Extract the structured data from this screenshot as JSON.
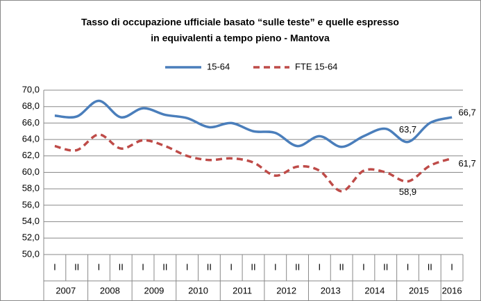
{
  "chart_data": {
    "type": "line",
    "title": [
      "Tasso di occupazione ufficiale basato “sulle teste” e quelle espresso",
      "in equivalenti a tempo pieno - Mantova"
    ],
    "categories": [
      "I",
      "II",
      "I",
      "II",
      "I",
      "II",
      "I",
      "II",
      "I",
      "II",
      "I",
      "II",
      "I",
      "II",
      "I",
      "II",
      "I",
      "II",
      "I"
    ],
    "years": [
      "2007",
      "2008",
      "2009",
      "2010",
      "2011",
      "2012",
      "2013",
      "2014",
      "2015",
      "2016"
    ],
    "series": [
      {
        "name": "15-64",
        "color": "#4a7ebb",
        "dash": false,
        "values": [
          66.9,
          66.8,
          68.7,
          66.7,
          67.8,
          67.0,
          66.6,
          65.5,
          66.0,
          65.0,
          64.8,
          63.2,
          64.4,
          63.1,
          64.4,
          65.3,
          63.7,
          66.0,
          66.7
        ],
        "value_labels": [
          null,
          null,
          null,
          null,
          null,
          null,
          null,
          null,
          null,
          null,
          null,
          null,
          null,
          null,
          null,
          null,
          "63,7",
          null,
          "66,7"
        ]
      },
      {
        "name": "FTE 15-64",
        "color": "#be4b48",
        "dash": true,
        "values": [
          63.2,
          62.7,
          64.6,
          62.9,
          63.9,
          63.2,
          62.0,
          61.5,
          61.7,
          61.2,
          59.6,
          60.7,
          60.2,
          57.7,
          60.2,
          60.0,
          58.9,
          60.8,
          61.7
        ],
        "value_labels": [
          null,
          null,
          null,
          null,
          null,
          null,
          null,
          null,
          null,
          null,
          null,
          null,
          null,
          null,
          null,
          null,
          "58,9",
          null,
          "61,7"
        ]
      }
    ],
    "ylim": [
      50,
      70
    ],
    "yticks": [
      {
        "value": 50,
        "label": "50,0"
      },
      {
        "value": 52,
        "label": "52,0"
      },
      {
        "value": 54,
        "label": "54,0"
      },
      {
        "value": 56,
        "label": "56,0"
      },
      {
        "value": 58,
        "label": "58,0"
      },
      {
        "value": 60,
        "label": "60,0"
      },
      {
        "value": 62,
        "label": "62,0"
      },
      {
        "value": 64,
        "label": "64,0"
      },
      {
        "value": 66,
        "label": "66,0"
      },
      {
        "value": 68,
        "label": "68,0"
      },
      {
        "value": 70,
        "label": "70,0"
      }
    ],
    "grid": true,
    "legend": "top"
  }
}
